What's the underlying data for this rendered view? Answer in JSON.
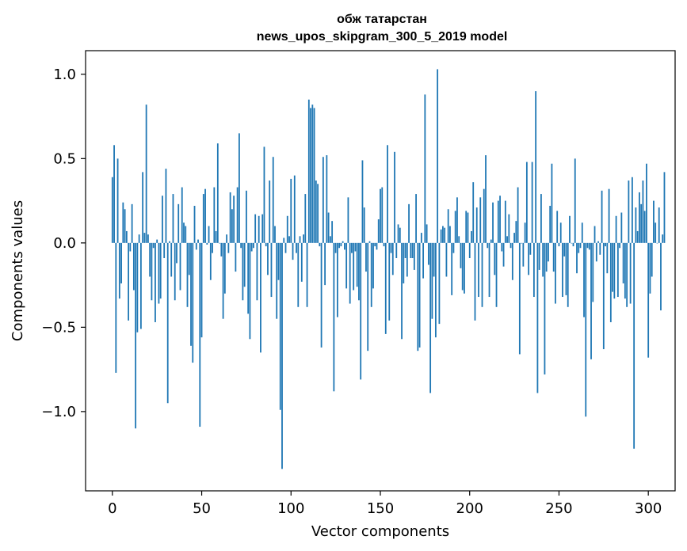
{
  "chart_data": {
    "type": "bar",
    "title": "обж татарстан",
    "subtitle": "news_upos_skipgram_300_5_2019 model",
    "xlabel": "Vector components",
    "ylabel": "Components values",
    "xlim": [
      -15,
      315
    ],
    "ylim": [
      -1.47,
      1.14
    ],
    "xticks": [
      0,
      50,
      100,
      150,
      200,
      250,
      300
    ],
    "xtick_labels": [
      "0",
      "50",
      "100",
      "150",
      "200",
      "250",
      "300"
    ],
    "yticks": [
      -1.0,
      -0.5,
      0.0,
      0.5,
      1.0
    ],
    "ytick_labels": [
      "−1.0",
      "−0.5",
      "0.0",
      "0.5",
      "1.0"
    ],
    "grid": false,
    "bar_color": "#1f77b4",
    "values": [
      0.39,
      0.58,
      -0.77,
      0.5,
      -0.33,
      -0.24,
      0.24,
      0.2,
      0.07,
      -0.46,
      -0.05,
      0.23,
      -0.28,
      -1.1,
      -0.53,
      0.05,
      -0.51,
      0.42,
      0.06,
      0.82,
      0.05,
      -0.2,
      -0.34,
      -0.03,
      -0.47,
      0.02,
      -0.36,
      -0.33,
      0.28,
      -0.09,
      0.44,
      -0.95,
      0.01,
      -0.2,
      0.29,
      -0.34,
      -0.12,
      0.23,
      -0.28,
      0.33,
      0.12,
      0.1,
      -0.38,
      -0.19,
      -0.61,
      -0.71,
      0.22,
      -0.04,
      0.02,
      -1.09,
      -0.56,
      0.29,
      0.32,
      -0.01,
      0.1,
      -0.22,
      -0.06,
      0.33,
      0.07,
      0.59,
      0.0,
      -0.08,
      -0.45,
      -0.3,
      0.05,
      -0.06,
      0.3,
      0.2,
      0.28,
      -0.17,
      0.33,
      0.65,
      -0.03,
      -0.34,
      -0.26,
      0.31,
      -0.42,
      -0.57,
      -0.05,
      -0.03,
      0.17,
      -0.34,
      0.16,
      -0.65,
      0.17,
      0.57,
      -0.02,
      -0.19,
      0.37,
      -0.32,
      0.51,
      0.1,
      -0.45,
      -0.22,
      -0.99,
      -1.34,
      0.03,
      -0.06,
      0.16,
      0.04,
      0.38,
      -0.1,
      0.4,
      -0.06,
      -0.38,
      0.04,
      -0.23,
      0.05,
      0.29,
      -0.38,
      0.85,
      0.8,
      0.82,
      0.8,
      0.37,
      0.35,
      -0.02,
      -0.62,
      0.51,
      -0.25,
      0.52,
      0.18,
      0.04,
      0.13,
      -0.88,
      -0.06,
      -0.44,
      -0.03,
      -0.02,
      0.01,
      -0.04,
      -0.27,
      0.27,
      -0.36,
      -0.06,
      -0.28,
      -0.05,
      -0.26,
      -0.34,
      -0.81,
      0.49,
      0.21,
      -0.17,
      -0.64,
      0.01,
      -0.38,
      -0.27,
      -0.02,
      -0.04,
      0.14,
      0.32,
      0.33,
      -0.02,
      -0.54,
      0.58,
      -0.46,
      -0.06,
      -0.19,
      0.54,
      -0.09,
      0.11,
      0.09,
      -0.57,
      -0.24,
      -0.09,
      -0.2,
      0.23,
      -0.09,
      -0.09,
      -0.16,
      0.29,
      -0.64,
      -0.62,
      0.06,
      -0.21,
      0.88,
      0.11,
      -0.13,
      -0.89,
      -0.45,
      -0.2,
      -0.56,
      1.03,
      -0.48,
      0.08,
      0.1,
      0.09,
      -0.2,
      0.2,
      0.1,
      -0.31,
      -0.06,
      0.19,
      0.27,
      0.04,
      -0.15,
      -0.28,
      -0.3,
      0.19,
      0.18,
      -0.09,
      0.07,
      0.36,
      -0.46,
      0.21,
      -0.32,
      0.27,
      -0.38,
      0.32,
      0.52,
      -0.03,
      -0.32,
      0.02,
      0.24,
      -0.19,
      -0.38,
      0.25,
      0.28,
      -0.05,
      -0.14,
      0.25,
      0.04,
      0.17,
      -0.03,
      -0.22,
      0.06,
      0.13,
      0.33,
      -0.66,
      0.0,
      -0.14,
      0.12,
      0.48,
      -0.19,
      -0.07,
      0.48,
      -0.32,
      0.9,
      -0.89,
      -0.16,
      0.29,
      -0.2,
      -0.78,
      -0.17,
      -0.11,
      0.22,
      0.47,
      -0.17,
      -0.36,
      0.19,
      -0.02,
      0.12,
      -0.32,
      -0.08,
      -0.31,
      -0.38,
      0.16,
      0.0,
      -0.02,
      0.5,
      -0.18,
      -0.06,
      -0.03,
      0.12,
      -0.44,
      -1.03,
      -0.03,
      -0.04,
      -0.69,
      -0.35,
      0.1,
      -0.11,
      0.01,
      -0.07,
      0.31,
      -0.63,
      -0.02,
      -0.18,
      0.32,
      -0.47,
      -0.29,
      -0.33,
      0.16,
      -0.32,
      -0.03,
      0.18,
      -0.24,
      -0.33,
      -0.38,
      0.37,
      -0.36,
      0.39,
      -1.22,
      0.21,
      0.07,
      0.3,
      0.23,
      0.37,
      0.19,
      0.47,
      -0.68,
      -0.3,
      -0.2,
      0.25,
      0.12,
      0.0,
      0.21,
      -0.4,
      0.05,
      0.42
    ]
  }
}
